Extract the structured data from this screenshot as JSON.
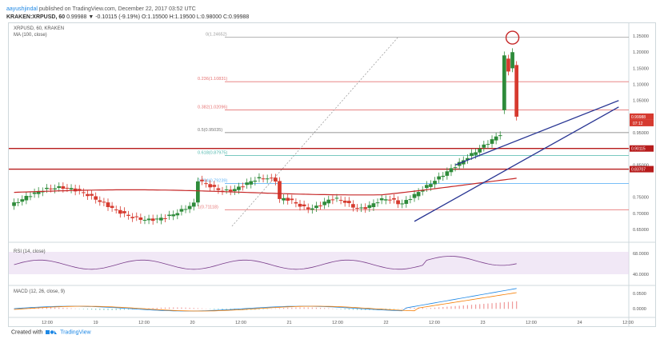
{
  "header": {
    "author": "aayushjindal",
    "published_text": "published on TradingView.com, December 22, 2017 03:52 UTC",
    "symbol_line": "KRAKEN:XRPUSD, 60",
    "ohlc_line": "0.99988 ▼ -0.10115 (-9.19%) O:1.15500 H:1.19500 L:0.98000 C:0.99988"
  },
  "chart": {
    "symbol_label": "XRPUSD, 60, KRAKEN",
    "ma_label": "MA (100, close)",
    "rsi_label": "RSI (14, close)",
    "macd_label": "MACD (12, 26, close, 9)"
  },
  "price_axis": [
    "1.25000",
    "1.20000",
    "1.15000",
    "1.10000",
    "1.05000",
    "0.99988",
    "0.95000",
    "0.90115",
    "0.85000",
    "0.83707",
    "0.75000",
    "0.70000",
    "0.65000"
  ],
  "last_price_tags": [
    "0.99988",
    "07:12"
  ],
  "rsi_axis": [
    "68.0000",
    "40.0000"
  ],
  "macd_axis": [
    "0.0500",
    "0.0000"
  ],
  "time_axis": [
    "12:00",
    "19",
    "12:00",
    "20",
    "12:00",
    "21",
    "12:00",
    "22",
    "12:00",
    "23",
    "12:00",
    "24",
    "12:00"
  ],
  "fib_levels": [
    {
      "label": "0(1.24652)",
      "value": 1.24652
    },
    {
      "label": "0.236(1.10831)",
      "value": 1.10831
    },
    {
      "label": "0.382(1.02096)",
      "value": 1.02096
    },
    {
      "label": "0.5(0.95035)",
      "value": 0.95035
    },
    {
      "label": "0.618(0.87975)",
      "value": 0.87975
    },
    {
      "label": "0.764(0.79239)",
      "value": 0.79239
    },
    {
      "label": "1(0.71118)",
      "value": 0.71118
    }
  ],
  "footer": {
    "created_with": "Created with",
    "brand": "TradingView"
  },
  "colors": {
    "up": "#2e8b3a",
    "down": "#d63a2f",
    "ma": "#c62828",
    "trend": "#283593",
    "fib": "#9e9e9e",
    "rsi": "#7b3f8c",
    "macd": "#1e88e5",
    "signal": "#f57c00",
    "support": "#b71c1c"
  },
  "icons": [
    "trading-view-logo-icon"
  ]
}
